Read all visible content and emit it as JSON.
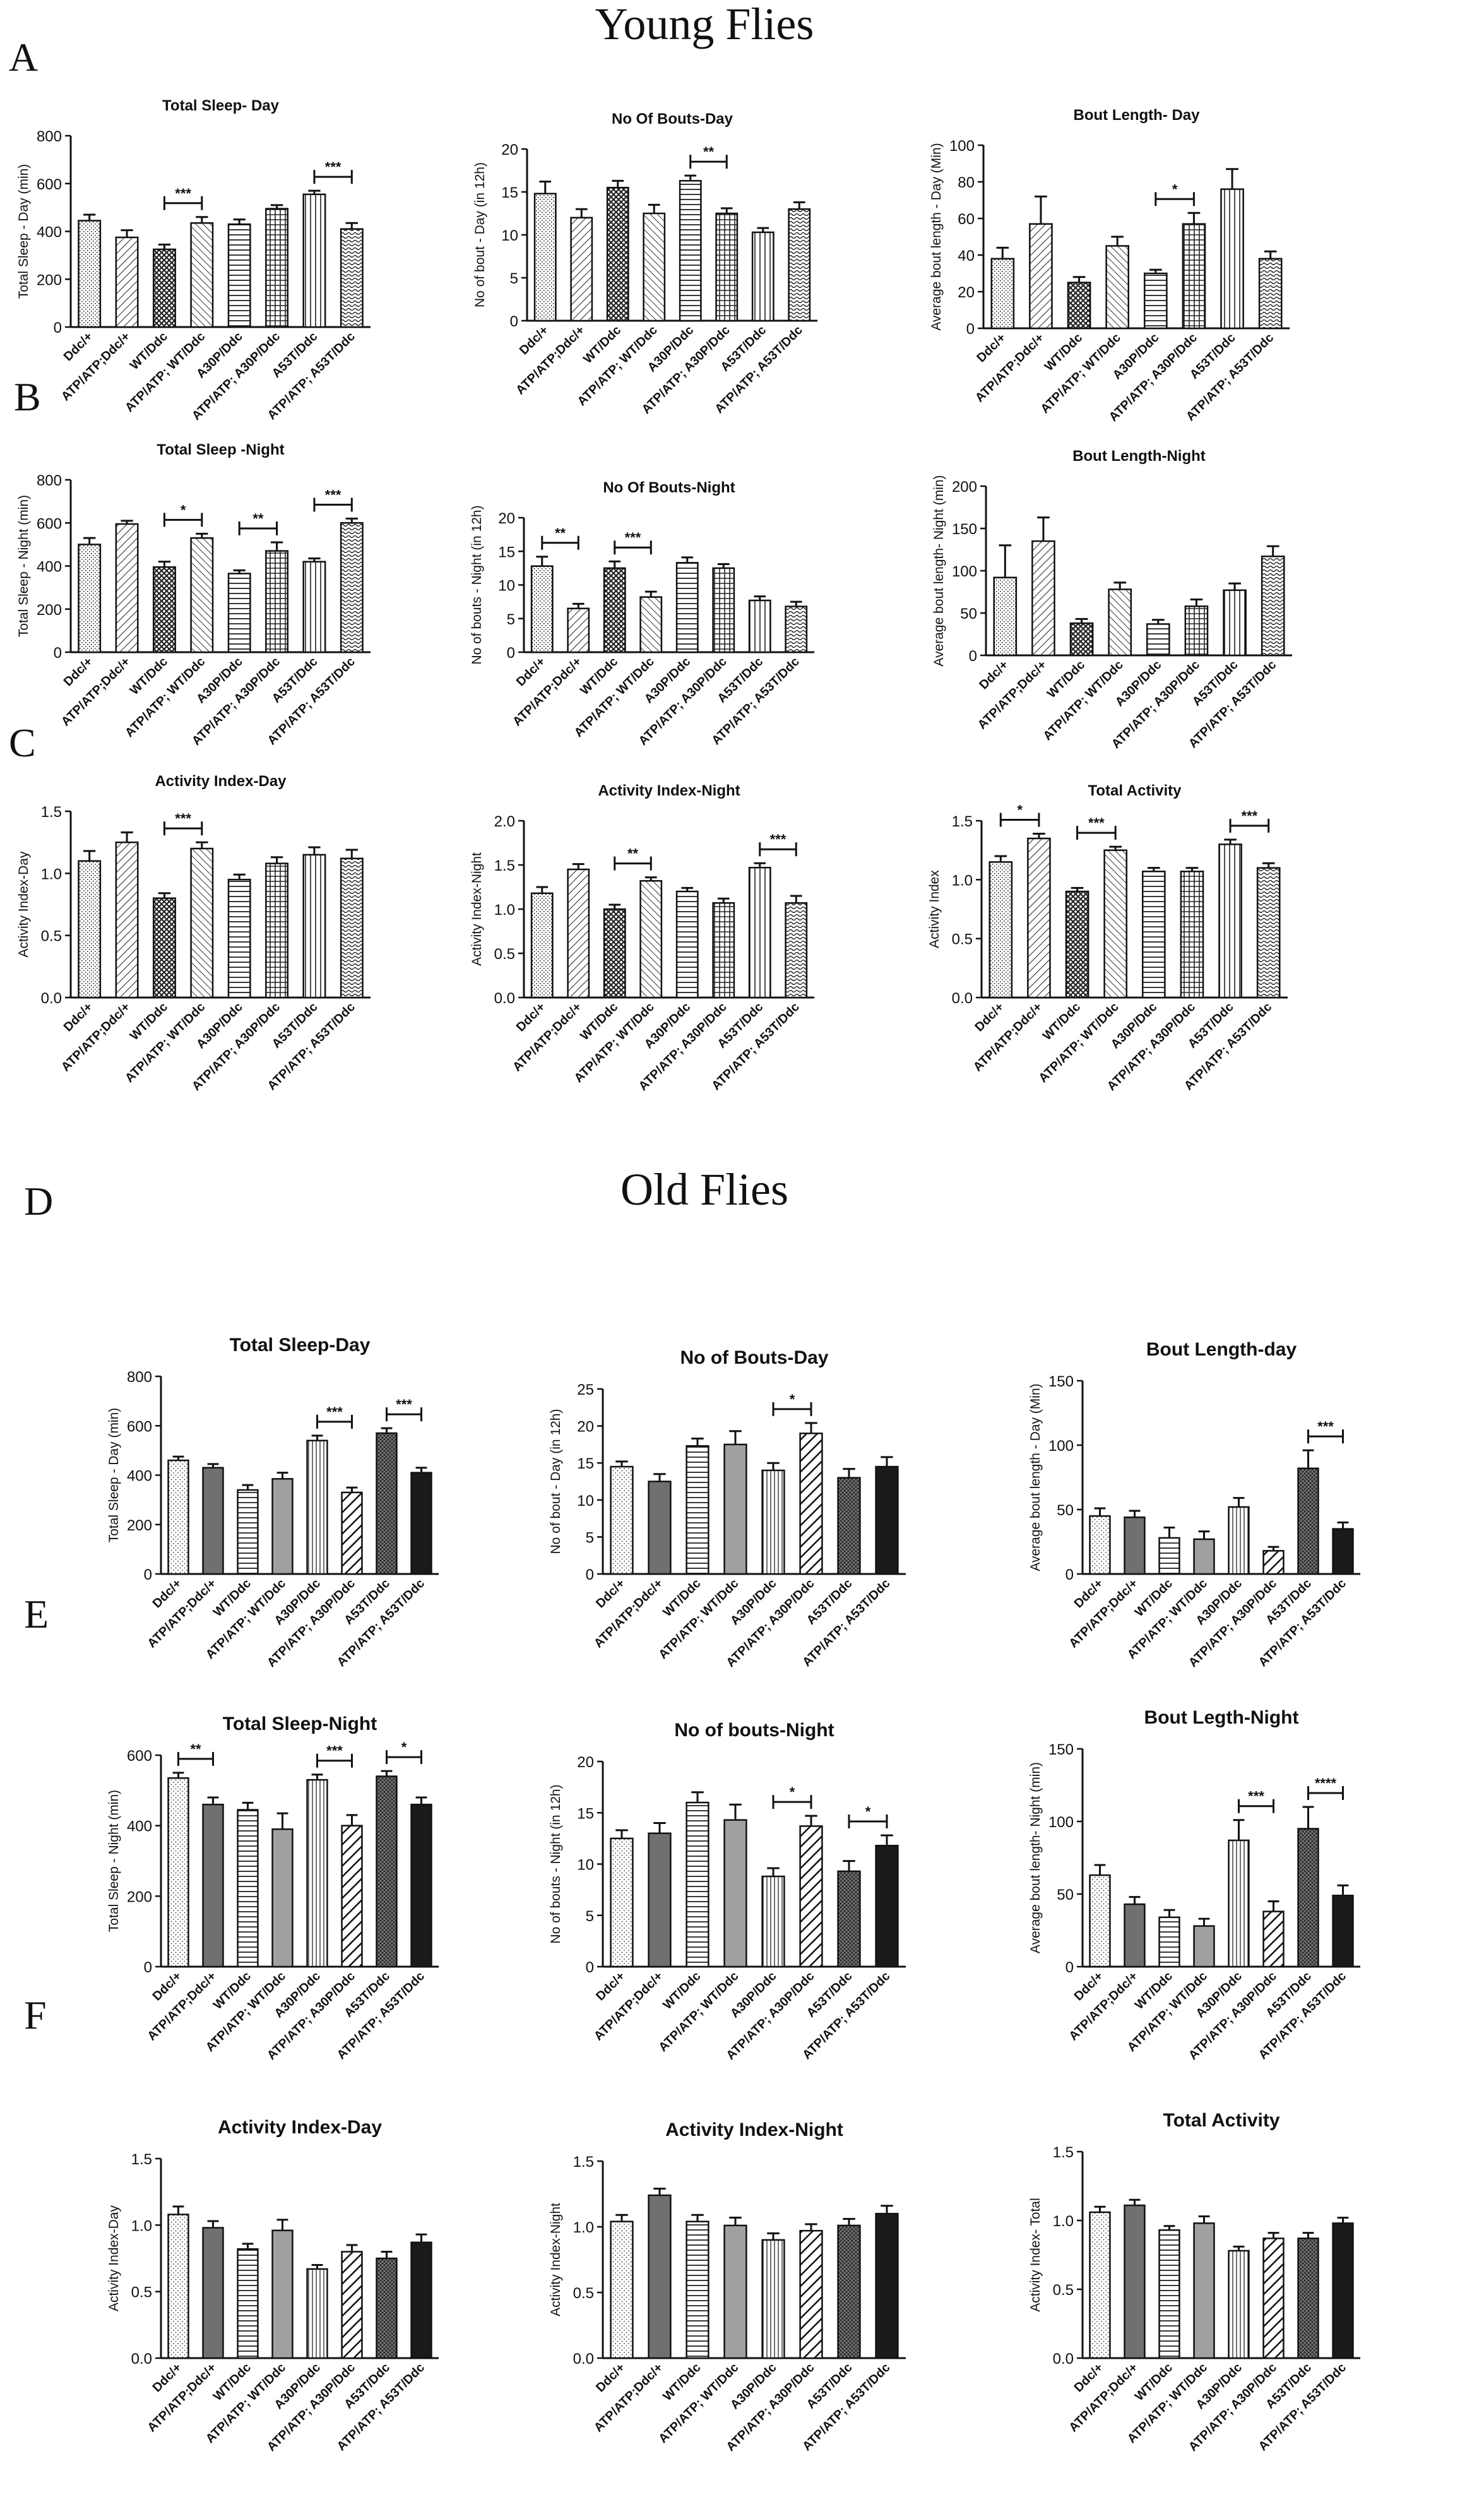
{
  "figure": {
    "headings": {
      "young": "Young Flies",
      "old": "Old Flies"
    },
    "panel_letters": [
      "A",
      "B",
      "C",
      "D",
      "E",
      "F"
    ]
  },
  "legend": {
    "groups": [
      "Ddc/+",
      "ATP/ATP;Ddc/+",
      "WT/Ddc",
      "ATP/ATP; WT/Ddc",
      "A30P/Ddc",
      "ATP/ATP; A30P/Ddc",
      "A53T/Ddc",
      "ATP/ATP; A53T/Ddc"
    ],
    "bar_color_young": "#ffffff",
    "bar_stroke": "#111111",
    "old_solid_grey": "#a0a0a0",
    "old_dark_grey": "#707070",
    "old_black": "#1a1a1a"
  },
  "chart_data": [
    {
      "type": "bar",
      "section": "young",
      "title": "Total Sleep- Day",
      "ylabel": "Total Sleep - Day (min)",
      "ylim": [
        0,
        800
      ],
      "yticks": [
        "0",
        "200",
        "400",
        "600",
        "800"
      ],
      "categories": [
        "Ddc/+",
        "ATP/ATP;Ddc/+",
        "WT/Ddc",
        "ATP/ATP; WT/Ddc",
        "A30P/Ddc",
        "ATP/ATP; A30P/Ddc",
        "A53T/Ddc",
        "ATP/ATP; A53T/Ddc"
      ],
      "values": [
        445,
        375,
        325,
        435,
        430,
        495,
        555,
        410
      ],
      "errors": [
        25,
        30,
        20,
        25,
        20,
        15,
        15,
        25
      ],
      "significance": [
        {
          "from": 2,
          "to": 3,
          "label": "***"
        },
        {
          "from": 6,
          "to": 7,
          "label": "***"
        }
      ]
    },
    {
      "type": "bar",
      "section": "young",
      "title": "No Of Bouts-Day",
      "ylabel": "No of bout - Day (in 12h)",
      "ylim": [
        0,
        20
      ],
      "yticks": [
        "0",
        "5",
        "10",
        "15",
        "20"
      ],
      "categories": [
        "Ddc/+",
        "ATP/ATP;Ddc/+",
        "WT/Ddc",
        "ATP/ATP; WT/Ddc",
        "A30P/Ddc",
        "ATP/ATP; A30P/Ddc",
        "A53T/Ddc",
        "ATP/ATP; A53T/Ddc"
      ],
      "values": [
        14.8,
        12.0,
        15.5,
        12.5,
        16.3,
        12.5,
        10.3,
        13.0
      ],
      "errors": [
        1.4,
        1.0,
        0.8,
        1.0,
        0.6,
        0.6,
        0.5,
        0.8
      ],
      "significance": [
        {
          "from": 4,
          "to": 5,
          "label": "**"
        }
      ]
    },
    {
      "type": "bar",
      "section": "young",
      "title": "Bout Length- Day",
      "ylabel": "Average bout length - Day (Min)",
      "ylim": [
        0,
        100
      ],
      "yticks": [
        "0",
        "20",
        "40",
        "60",
        "80",
        "100"
      ],
      "categories": [
        "Ddc/+",
        "ATP/ATP;Ddc/+",
        "WT/Ddc",
        "ATP/ATP; WT/Ddc",
        "A30P/Ddc",
        "ATP/ATP; A30P/Ddc",
        "A53T/Ddc",
        "ATP/ATP; A53T/Ddc"
      ],
      "values": [
        38,
        57,
        25,
        45,
        30,
        57,
        76,
        38
      ],
      "errors": [
        6,
        15,
        3,
        5,
        2,
        6,
        11,
        4
      ],
      "significance": [
        {
          "from": 4,
          "to": 5,
          "label": "*"
        }
      ]
    },
    {
      "type": "bar",
      "section": "young",
      "title": "Total  Sleep -Night",
      "ylabel": "Total Sleep - Night (min)",
      "ylim": [
        0,
        800
      ],
      "yticks": [
        "0",
        "200",
        "400",
        "600",
        "800"
      ],
      "categories": [
        "Ddc/+",
        "ATP/ATP;Ddc/+",
        "WT/Ddc",
        "ATP/ATP; WT/Ddc",
        "A30P/Ddc",
        "ATP/ATP; A30P/Ddc",
        "A53T/Ddc",
        "ATP/ATP; A53T/Ddc"
      ],
      "values": [
        500,
        595,
        395,
        530,
        365,
        470,
        420,
        600
      ],
      "errors": [
        30,
        15,
        25,
        20,
        15,
        40,
        15,
        20
      ],
      "significance": [
        {
          "from": 2,
          "to": 3,
          "label": "*"
        },
        {
          "from": 4,
          "to": 5,
          "label": "**"
        },
        {
          "from": 6,
          "to": 7,
          "label": "***"
        }
      ]
    },
    {
      "type": "bar",
      "section": "young",
      "title": "No Of Bouts-Night",
      "ylabel": "No of bouts - Night (in 12h)",
      "ylim": [
        0,
        20
      ],
      "yticks": [
        "0",
        "5",
        "10",
        "15",
        "20"
      ],
      "categories": [
        "Ddc/+",
        "ATP/ATP;Ddc/+",
        "WT/Ddc",
        "ATP/ATP; WT/Ddc",
        "A30P/Ddc",
        "ATP/ATP; A30P/Ddc",
        "A53T/Ddc",
        "ATP/ATP; A53T/Ddc"
      ],
      "values": [
        12.8,
        6.5,
        12.5,
        8.2,
        13.3,
        12.5,
        7.7,
        6.8
      ],
      "errors": [
        1.4,
        0.7,
        1.0,
        0.8,
        0.8,
        0.6,
        0.6,
        0.7
      ],
      "significance": [
        {
          "from": 0,
          "to": 1,
          "label": "**"
        },
        {
          "from": 2,
          "to": 3,
          "label": "***"
        }
      ]
    },
    {
      "type": "bar",
      "section": "young",
      "title": "Bout Length-Night",
      "ylabel": "Average bout length- Night (min)",
      "ylim": [
        0,
        200
      ],
      "yticks": [
        "0",
        "50",
        "100",
        "150",
        "200"
      ],
      "categories": [
        "Ddc/+",
        "ATP/ATP;Ddc/+",
        "WT/Ddc",
        "ATP/ATP; WT/Ddc",
        "A30P/Ddc",
        "ATP/ATP; A30P/Ddc",
        "A53T/Ddc",
        "ATP/ATP; A53T/Ddc"
      ],
      "values": [
        92,
        135,
        38,
        78,
        37,
        58,
        77,
        117
      ],
      "errors": [
        38,
        28,
        5,
        8,
        5,
        8,
        8,
        12
      ],
      "significance": []
    },
    {
      "type": "bar",
      "section": "young",
      "title": "Activity Index-Day",
      "ylabel": "Activity Index-Day",
      "ylim": [
        0,
        1.5
      ],
      "yticks": [
        "0.0",
        "0.5",
        "1.0",
        "1.5"
      ],
      "categories": [
        "Ddc/+",
        "ATP/ATP;Ddc/+",
        "WT/Ddc",
        "ATP/ATP; WT/Ddc",
        "A30P/Ddc",
        "ATP/ATP; A30P/Ddc",
        "A53T/Ddc",
        "ATP/ATP; A53T/Ddc"
      ],
      "values": [
        1.1,
        1.25,
        0.8,
        1.2,
        0.95,
        1.08,
        1.15,
        1.12
      ],
      "errors": [
        0.08,
        0.08,
        0.04,
        0.05,
        0.04,
        0.05,
        0.06,
        0.07
      ],
      "significance": [
        {
          "from": 2,
          "to": 3,
          "label": "***"
        }
      ]
    },
    {
      "type": "bar",
      "section": "young",
      "title": "Activity Index-Night",
      "ylabel": "Activity Index-Night",
      "ylim": [
        0,
        2.0
      ],
      "yticks": [
        "0.0",
        "0.5",
        "1.0",
        "1.5",
        "2.0"
      ],
      "categories": [
        "Ddc/+",
        "ATP/ATP;Ddc/+",
        "WT/Ddc",
        "ATP/ATP; WT/Ddc",
        "A30P/Ddc",
        "ATP/ATP; A30P/Ddc",
        "A53T/Ddc",
        "ATP/ATP; A53T/Ddc"
      ],
      "values": [
        1.18,
        1.45,
        1.0,
        1.32,
        1.2,
        1.07,
        1.47,
        1.07
      ],
      "errors": [
        0.07,
        0.06,
        0.05,
        0.04,
        0.04,
        0.05,
        0.05,
        0.08
      ],
      "significance": [
        {
          "from": 2,
          "to": 3,
          "label": "**"
        },
        {
          "from": 6,
          "to": 7,
          "label": "***"
        }
      ]
    },
    {
      "type": "bar",
      "section": "young",
      "title": "Total Activity",
      "ylabel": "Activity Index",
      "ylim": [
        0,
        1.5
      ],
      "yticks": [
        "0.0",
        "0.5",
        "1.0",
        "1.5"
      ],
      "categories": [
        "Ddc/+",
        "ATP/ATP;Ddc/+",
        "WT/Ddc",
        "ATP/ATP; WT/Ddc",
        "A30P/Ddc",
        "ATP/ATP; A30P/Ddc",
        "A53T/Ddc",
        "ATP/ATP; A53T/Ddc"
      ],
      "values": [
        1.15,
        1.35,
        0.9,
        1.25,
        1.07,
        1.07,
        1.3,
        1.1
      ],
      "errors": [
        0.05,
        0.04,
        0.03,
        0.03,
        0.03,
        0.03,
        0.04,
        0.04
      ],
      "significance": [
        {
          "from": 0,
          "to": 1,
          "label": "*"
        },
        {
          "from": 2,
          "to": 3,
          "label": "***"
        },
        {
          "from": 6,
          "to": 7,
          "label": "***"
        }
      ]
    },
    {
      "type": "bar",
      "section": "old",
      "title": "Total Sleep-Day",
      "ylabel": "Total Sleep - Day (min)",
      "ylim": [
        0,
        800
      ],
      "yticks": [
        "0",
        "200",
        "400",
        "600",
        "800"
      ],
      "categories": [
        "Ddc/+",
        "ATP/ATP;Ddc/+",
        "WT/Ddc",
        "ATP/ATP; WT/Ddc",
        "A30P/Ddc",
        "ATP/ATP; A30P/Ddc",
        "A53T/Ddc",
        "ATP/ATP; A53T/Ddc"
      ],
      "values": [
        460,
        430,
        340,
        385,
        540,
        330,
        570,
        410
      ],
      "errors": [
        15,
        15,
        20,
        25,
        20,
        20,
        20,
        20
      ],
      "significance": [
        {
          "from": 4,
          "to": 5,
          "label": "***"
        },
        {
          "from": 6,
          "to": 7,
          "label": "***"
        }
      ]
    },
    {
      "type": "bar",
      "section": "old",
      "title": "No of Bouts-Day",
      "ylabel": "No of bout - Day (in 12h)",
      "ylim": [
        0,
        25
      ],
      "yticks": [
        "0",
        "5",
        "10",
        "15",
        "20",
        "25"
      ],
      "categories": [
        "Ddc/+",
        "ATP/ATP;Ddc/+",
        "WT/Ddc",
        "ATP/ATP; WT/Ddc",
        "A30P/Ddc",
        "ATP/ATP; A30P/Ddc",
        "A53T/Ddc",
        "ATP/ATP; A53T/Ddc"
      ],
      "values": [
        14.5,
        12.5,
        17.3,
        17.5,
        14.0,
        19.0,
        13.0,
        14.5
      ],
      "errors": [
        0.7,
        1.0,
        1.0,
        1.8,
        1.0,
        1.4,
        1.2,
        1.3
      ],
      "significance": [
        {
          "from": 4,
          "to": 5,
          "label": "*"
        }
      ]
    },
    {
      "type": "bar",
      "section": "old",
      "title": "Bout Length-day",
      "ylabel": "Average bout length - Day (Min)",
      "ylim": [
        0,
        150
      ],
      "yticks": [
        "0",
        "50",
        "100",
        "150"
      ],
      "categories": [
        "Ddc/+",
        "ATP/ATP;Ddc/+",
        "WT/Ddc",
        "ATP/ATP; WT/Ddc",
        "A30P/Ddc",
        "ATP/ATP; A30P/Ddc",
        "A53T/Ddc",
        "ATP/ATP; A53T/Ddc"
      ],
      "values": [
        45,
        44,
        28,
        27,
        52,
        18,
        82,
        35
      ],
      "errors": [
        6,
        5,
        8,
        6,
        7,
        3,
        14,
        5
      ],
      "significance": [
        {
          "from": 6,
          "to": 7,
          "label": "***"
        }
      ]
    },
    {
      "type": "bar",
      "section": "old",
      "title": "Total Sleep-Night",
      "ylabel": "Total Sleep - Night (min)",
      "ylim": [
        0,
        600
      ],
      "yticks": [
        "0",
        "200",
        "400",
        "600"
      ],
      "categories": [
        "Ddc/+",
        "ATP/ATP;Ddc/+",
        "WT/Ddc",
        "ATP/ATP; WT/Ddc",
        "A30P/Ddc",
        "ATP/ATP; A30P/Ddc",
        "A53T/Ddc",
        "ATP/ATP; A53T/Ddc"
      ],
      "values": [
        535,
        460,
        445,
        390,
        530,
        400,
        540,
        460
      ],
      "errors": [
        15,
        20,
        20,
        45,
        15,
        30,
        15,
        20
      ],
      "significance": [
        {
          "from": 0,
          "to": 1,
          "label": "**"
        },
        {
          "from": 4,
          "to": 5,
          "label": "***"
        },
        {
          "from": 6,
          "to": 7,
          "label": "*"
        }
      ]
    },
    {
      "type": "bar",
      "section": "old",
      "title": "No of bouts-Night",
      "ylabel": "No of bouts - Night (in 12h)",
      "ylim": [
        0,
        20
      ],
      "yticks": [
        "0",
        "5",
        "10",
        "15",
        "20"
      ],
      "categories": [
        "Ddc/+",
        "ATP/ATP;Ddc/+",
        "WT/Ddc",
        "ATP/ATP; WT/Ddc",
        "A30P/Ddc",
        "ATP/ATP; A30P/Ddc",
        "A53T/Ddc",
        "ATP/ATP; A53T/Ddc"
      ],
      "values": [
        12.5,
        13.0,
        16.0,
        14.3,
        8.8,
        13.7,
        9.3,
        11.8
      ],
      "errors": [
        0.8,
        1.0,
        1.0,
        1.5,
        0.8,
        1.0,
        1.0,
        1.0
      ],
      "significance": [
        {
          "from": 4,
          "to": 5,
          "label": "*"
        },
        {
          "from": 6,
          "to": 7,
          "label": "*"
        }
      ]
    },
    {
      "type": "bar",
      "section": "old",
      "title": "Bout Legth-Night",
      "ylabel": "Average bout length- Night (min)",
      "ylim": [
        0,
        150
      ],
      "yticks": [
        "0",
        "50",
        "100",
        "150"
      ],
      "categories": [
        "Ddc/+",
        "ATP/ATP;Ddc/+",
        "WT/Ddc",
        "ATP/ATP; WT/Ddc",
        "A30P/Ddc",
        "ATP/ATP; A30P/Ddc",
        "A53T/Ddc",
        "ATP/ATP; A53T/Ddc"
      ],
      "values": [
        63,
        43,
        34,
        28,
        87,
        38,
        95,
        49
      ],
      "errors": [
        7,
        5,
        5,
        5,
        14,
        7,
        15,
        7
      ],
      "significance": [
        {
          "from": 4,
          "to": 5,
          "label": "***"
        },
        {
          "from": 6,
          "to": 7,
          "label": "****"
        }
      ]
    },
    {
      "type": "bar",
      "section": "old",
      "title": "Activity Index-Day",
      "ylabel": "Activity Index-Day",
      "ylim": [
        0,
        1.5
      ],
      "yticks": [
        "0.0",
        "0.5",
        "1.0",
        "1.5"
      ],
      "categories": [
        "Ddc/+",
        "ATP/ATP;Ddc/+",
        "WT/Ddc",
        "ATP/ATP; WT/Ddc",
        "A30P/Ddc",
        "ATP/ATP; A30P/Ddc",
        "A53T/Ddc",
        "ATP/ATP; A53T/Ddc"
      ],
      "values": [
        1.08,
        0.98,
        0.82,
        0.96,
        0.67,
        0.8,
        0.75,
        0.87
      ],
      "errors": [
        0.06,
        0.05,
        0.04,
        0.08,
        0.03,
        0.05,
        0.05,
        0.06
      ],
      "significance": []
    },
    {
      "type": "bar",
      "section": "old",
      "title": "Activity Index-Night",
      "ylabel": "Activity Index-Night",
      "ylim": [
        0,
        1.5
      ],
      "yticks": [
        "0.0",
        "0.5",
        "1.0",
        "1.5"
      ],
      "categories": [
        "Ddc/+",
        "ATP/ATP;Ddc/+",
        "WT/Ddc",
        "ATP/ATP; WT/Ddc",
        "A30P/Ddc",
        "ATP/ATP; A30P/Ddc",
        "A53T/Ddc",
        "ATP/ATP; A53T/Ddc"
      ],
      "values": [
        1.04,
        1.24,
        1.04,
        1.01,
        0.9,
        0.97,
        1.01,
        1.1
      ],
      "errors": [
        0.05,
        0.05,
        0.05,
        0.06,
        0.05,
        0.05,
        0.05,
        0.06
      ],
      "significance": []
    },
    {
      "type": "bar",
      "section": "old",
      "title": "Total Activity",
      "ylabel": "Activity Index- Total",
      "ylim": [
        0,
        1.5
      ],
      "yticks": [
        "0.0",
        "0.5",
        "1.0",
        "1.5"
      ],
      "categories": [
        "Ddc/+",
        "ATP/ATP;Ddc/+",
        "WT/Ddc",
        "ATP/ATP; WT/Ddc",
        "A30P/Ddc",
        "ATP/ATP; A30P/Ddc",
        "A53T/Ddc",
        "ATP/ATP; A53T/Ddc"
      ],
      "values": [
        1.06,
        1.11,
        0.93,
        0.98,
        0.78,
        0.87,
        0.87,
        0.98
      ],
      "errors": [
        0.04,
        0.04,
        0.03,
        0.05,
        0.03,
        0.04,
        0.04,
        0.04
      ],
      "significance": []
    }
  ]
}
